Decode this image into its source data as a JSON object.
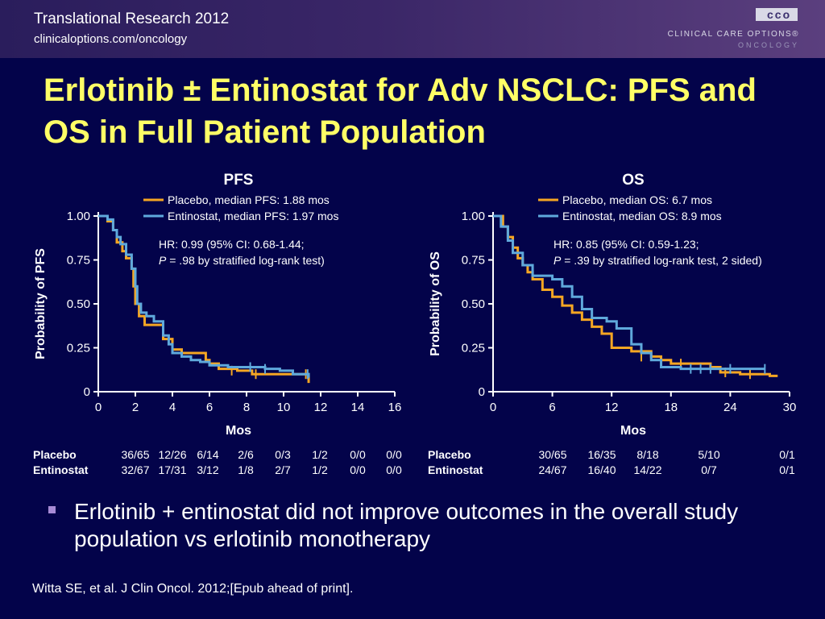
{
  "header": {
    "title": "Translational Research 2012",
    "url": "clinicaloptions.com/oncology",
    "logo_mark": "cco",
    "logo_main": "CLINICAL CARE OPTIONS®",
    "logo_sub": "ONCOLOGY"
  },
  "slide": {
    "title": "Erlotinib ± Entinostat for Adv NSCLC: PFS and OS in Full Patient Population",
    "bullet": "Erlotinib + entinostat did not improve outcomes in the overall study population vs erlotinib monotherapy",
    "citation": "Witta SE, et al. J Clin Oncol. 2012;[Epub ahead of print]."
  },
  "colors": {
    "placebo": "#f5a623",
    "entinostat": "#5fa9dc",
    "title": "#ffff66",
    "background": "#03034a"
  },
  "chart_data": [
    {
      "type": "line",
      "title": "PFS",
      "xlabel": "Mos",
      "ylabel": "Probability of PFS",
      "xlim": [
        0,
        16
      ],
      "ylim": [
        0,
        1
      ],
      "xticks": [
        0,
        2,
        4,
        6,
        8,
        10,
        12,
        14,
        16
      ],
      "yticks": [
        0,
        0.25,
        0.5,
        0.75,
        1.0
      ],
      "ytick_labels": [
        "0",
        "0.25",
        "0.50",
        "0.75",
        "1.00"
      ],
      "legend_position": "top-right",
      "series": [
        {
          "name": "Placebo, median PFS: 1.88 mos",
          "color_key": "placebo",
          "steps": [
            [
              0,
              1.0
            ],
            [
              0.3,
              1.0
            ],
            [
              0.5,
              0.97
            ],
            [
              0.8,
              0.92
            ],
            [
              1.0,
              0.85
            ],
            [
              1.3,
              0.8
            ],
            [
              1.5,
              0.76
            ],
            [
              1.8,
              0.7
            ],
            [
              1.9,
              0.6
            ],
            [
              2.0,
              0.5
            ],
            [
              2.2,
              0.43
            ],
            [
              2.5,
              0.38
            ],
            [
              3.2,
              0.38
            ],
            [
              3.5,
              0.3
            ],
            [
              4.0,
              0.24
            ],
            [
              4.5,
              0.22
            ],
            [
              5.5,
              0.22
            ],
            [
              5.8,
              0.18
            ],
            [
              6.0,
              0.16
            ],
            [
              6.5,
              0.13
            ],
            [
              7.5,
              0.12
            ],
            [
              8.3,
              0.1
            ],
            [
              11.3,
              0.1
            ],
            [
              11.35,
              0.05
            ]
          ],
          "censors": [
            [
              7.2,
              0.12
            ],
            [
              8.5,
              0.1
            ],
            [
              11.2,
              0.1
            ]
          ]
        },
        {
          "name": "Entinostat, median PFS: 1.97 mos",
          "color_key": "entinostat",
          "steps": [
            [
              0,
              1.0
            ],
            [
              0.2,
              1.0
            ],
            [
              0.5,
              0.98
            ],
            [
              0.8,
              0.92
            ],
            [
              1.0,
              0.88
            ],
            [
              1.2,
              0.84
            ],
            [
              1.5,
              0.78
            ],
            [
              1.8,
              0.7
            ],
            [
              2.0,
              0.6
            ],
            [
              2.1,
              0.5
            ],
            [
              2.3,
              0.45
            ],
            [
              2.6,
              0.43
            ],
            [
              3.0,
              0.4
            ],
            [
              3.5,
              0.32
            ],
            [
              3.8,
              0.27
            ],
            [
              4.0,
              0.22
            ],
            [
              4.5,
              0.2
            ],
            [
              5.0,
              0.18
            ],
            [
              5.5,
              0.17
            ],
            [
              6.0,
              0.15
            ],
            [
              7.0,
              0.14
            ],
            [
              9.0,
              0.13
            ],
            [
              9.8,
              0.12
            ],
            [
              10.5,
              0.1
            ],
            [
              11.3,
              0.1
            ],
            [
              11.35,
              0.08
            ]
          ],
          "censors": [
            [
              8.2,
              0.14
            ],
            [
              9.0,
              0.13
            ],
            [
              11.3,
              0.1
            ]
          ]
        }
      ],
      "annotations": [
        "HR: 0.99 (95% CI: 0.68-1.44;",
        "P = .98 by stratified log-rank test)"
      ],
      "risk_table": {
        "rows": [
          {
            "label": "Placebo",
            "values": [
              "36/65",
              "12/26",
              "6/14",
              "2/6",
              "0/3",
              "1/2",
              "0/0",
              "0/0"
            ]
          },
          {
            "label": "Entinostat",
            "values": [
              "32/67",
              "17/31",
              "3/12",
              "1/8",
              "2/7",
              "1/2",
              "0/0",
              "0/0"
            ]
          }
        ]
      }
    },
    {
      "type": "line",
      "title": "OS",
      "xlabel": "Mos",
      "ylabel": "Probability of OS",
      "xlim": [
        0,
        30
      ],
      "ylim": [
        0,
        1
      ],
      "xticks": [
        0,
        6,
        12,
        18,
        24,
        30
      ],
      "yticks": [
        0,
        0.25,
        0.5,
        0.75,
        1.0
      ],
      "ytick_labels": [
        "0",
        "0.25",
        "0.50",
        "0.75",
        "1.00"
      ],
      "legend_position": "top-right",
      "series": [
        {
          "name": "Placebo, median OS: 6.7 mos",
          "color_key": "placebo",
          "steps": [
            [
              0,
              1.0
            ],
            [
              0.5,
              1.0
            ],
            [
              1.0,
              0.94
            ],
            [
              1.5,
              0.88
            ],
            [
              2.0,
              0.82
            ],
            [
              2.5,
              0.76
            ],
            [
              3.0,
              0.72
            ],
            [
              3.5,
              0.68
            ],
            [
              4.0,
              0.64
            ],
            [
              5.0,
              0.58
            ],
            [
              6.0,
              0.54
            ],
            [
              7.0,
              0.49
            ],
            [
              8.0,
              0.45
            ],
            [
              9.0,
              0.41
            ],
            [
              10.0,
              0.37
            ],
            [
              11.0,
              0.33
            ],
            [
              12.0,
              0.25
            ],
            [
              14.0,
              0.23
            ],
            [
              16.0,
              0.2
            ],
            [
              17.0,
              0.18
            ],
            [
              18.0,
              0.16
            ],
            [
              22.0,
              0.14
            ],
            [
              23.0,
              0.11
            ],
            [
              25.0,
              0.1
            ],
            [
              28.0,
              0.09
            ],
            [
              28.8,
              0.09
            ]
          ],
          "censors": [
            [
              15.0,
              0.2
            ],
            [
              19.0,
              0.16
            ],
            [
              23.5,
              0.11
            ],
            [
              26.0,
              0.1
            ]
          ]
        },
        {
          "name": "Entinostat, median OS: 8.9 mos",
          "color_key": "entinostat",
          "steps": [
            [
              0,
              1.0
            ],
            [
              0.3,
              1.0
            ],
            [
              0.8,
              0.94
            ],
            [
              1.5,
              0.86
            ],
            [
              2.0,
              0.79
            ],
            [
              3.0,
              0.72
            ],
            [
              4.0,
              0.66
            ],
            [
              6.0,
              0.64
            ],
            [
              7.0,
              0.6
            ],
            [
              8.0,
              0.54
            ],
            [
              9.0,
              0.47
            ],
            [
              10.0,
              0.42
            ],
            [
              11.5,
              0.4
            ],
            [
              12.5,
              0.36
            ],
            [
              14.0,
              0.27
            ],
            [
              15.0,
              0.22
            ],
            [
              16.0,
              0.18
            ],
            [
              17.0,
              0.14
            ],
            [
              19.0,
              0.13
            ],
            [
              27.0,
              0.13
            ],
            [
              27.5,
              0.13
            ]
          ],
          "censors": [
            [
              20.0,
              0.13
            ],
            [
              21.0,
              0.13
            ],
            [
              22.0,
              0.13
            ],
            [
              24.0,
              0.13
            ],
            [
              27.5,
              0.13
            ]
          ]
        }
      ],
      "annotations": [
        "HR: 0.85 (95% CI: 0.59-1.23;",
        "P = .39 by stratified log-rank test, 2 sided)"
      ],
      "risk_table": {
        "rows": [
          {
            "label": "Placebo",
            "values": [
              "30/65",
              "16/35",
              "8/18",
              "5/10",
              "0/1"
            ]
          },
          {
            "label": "Entinostat",
            "values": [
              "24/67",
              "16/40",
              "14/22",
              "0/7",
              "0/1"
            ]
          }
        ]
      }
    }
  ]
}
